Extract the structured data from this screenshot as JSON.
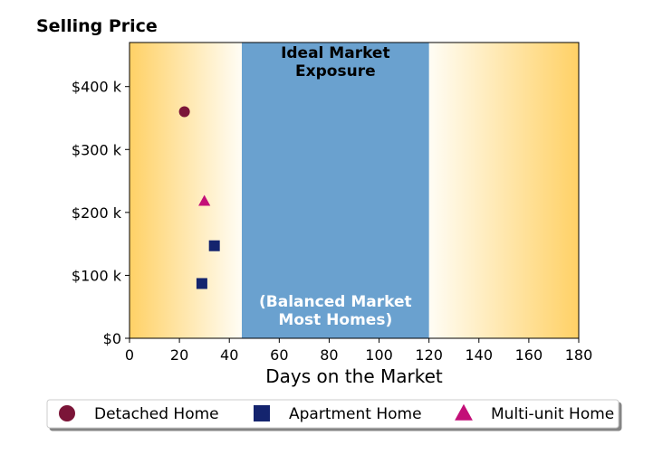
{
  "chart_data": {
    "type": "scatter",
    "ylabel": "Selling Price",
    "xlabel": "Days on the Market",
    "xlim": [
      0,
      180
    ],
    "ylim": [
      0,
      470000
    ],
    "x_ticks": [
      0,
      20,
      40,
      60,
      80,
      100,
      120,
      140,
      160,
      180
    ],
    "x_tick_labels": [
      "0",
      "20",
      "40",
      "60",
      "80",
      "100",
      "120",
      "140",
      "160",
      "180"
    ],
    "y_ticks": [
      0,
      100000,
      200000,
      300000,
      400000
    ],
    "y_tick_labels": [
      "$0",
      "$100 k",
      "$200 k",
      "$300 k",
      "$400 k"
    ],
    "band": {
      "x_start": 45,
      "x_end": 120,
      "title_lines": [
        "Ideal Market",
        "Exposure"
      ],
      "subtitle_lines": [
        "(Balanced Market",
        "Most Homes)"
      ],
      "color": "#6aa1cf"
    },
    "background_gradient": {
      "edge_color": "#ffd166",
      "center_color": "#fffdf5"
    },
    "series": [
      {
        "name": "Detached Home",
        "marker": "circle",
        "color": "#7b1538",
        "points": [
          {
            "x": 22,
            "y": 360000
          }
        ]
      },
      {
        "name": "Apartment Home",
        "marker": "square",
        "color": "#14246e",
        "points": [
          {
            "x": 34,
            "y": 147000
          },
          {
            "x": 29,
            "y": 87000
          }
        ]
      },
      {
        "name": "Multi-unit Home",
        "marker": "triangle",
        "color": "#c30f78",
        "points": [
          {
            "x": 30,
            "y": 218000
          }
        ]
      }
    ],
    "legend_position": "bottom"
  }
}
